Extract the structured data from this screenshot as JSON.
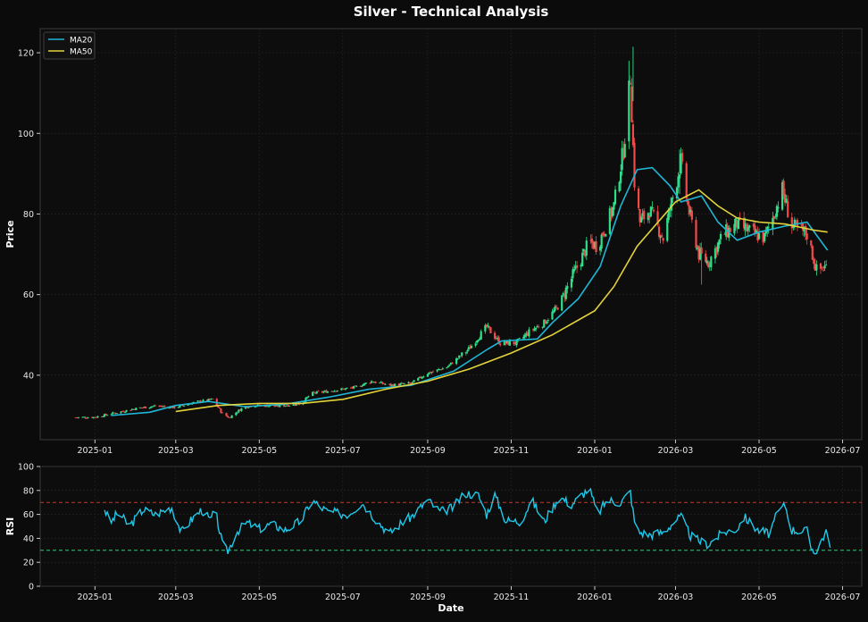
{
  "chart_data": [
    {
      "type": "candlestick",
      "title": "Silver - Technical Analysis",
      "ylabel": "Price",
      "ylim": [
        24,
        126
      ],
      "yticks": [
        40,
        60,
        80,
        100,
        120
      ],
      "xlim": [
        "2024-11-22",
        "2026-07-15"
      ],
      "xticks": [
        "2025-01",
        "2025-03",
        "2025-05",
        "2025-07",
        "2025-09",
        "2025-11",
        "2026-01",
        "2026-03",
        "2026-05",
        "2026-07"
      ],
      "grid": true,
      "legend_position": "top-left",
      "legend": [
        {
          "name": "MA20",
          "color": "#1fb6d6"
        },
        {
          "name": "MA50",
          "color": "#e3d43a"
        }
      ],
      "colors": {
        "up": "#2ee08a",
        "down": "#f04a4a",
        "ma20": "#1fb6d6",
        "ma50": "#e3d43a"
      },
      "approx_close_path": [
        [
          "2024-12-18",
          29.5
        ],
        [
          "2025-01-01",
          29.6
        ],
        [
          "2025-01-15",
          30.6
        ],
        [
          "2025-02-01",
          31.8
        ],
        [
          "2025-02-15",
          32.4
        ],
        [
          "2025-03-01",
          32.0
        ],
        [
          "2025-03-15",
          33.3
        ],
        [
          "2025-03-28",
          34.0
        ],
        [
          "2025-04-04",
          30.5
        ],
        [
          "2025-04-09",
          29.5
        ],
        [
          "2025-04-20",
          32.2
        ],
        [
          "2025-05-01",
          32.5
        ],
        [
          "2025-05-15",
          32.3
        ],
        [
          "2025-06-01",
          33.0
        ],
        [
          "2025-06-08",
          35.5
        ],
        [
          "2025-06-20",
          36.0
        ],
        [
          "2025-07-10",
          37.0
        ],
        [
          "2025-07-22",
          38.5
        ],
        [
          "2025-08-05",
          37.5
        ],
        [
          "2025-08-20",
          38.0
        ],
        [
          "2025-09-01",
          40.5
        ],
        [
          "2025-09-15",
          42.0
        ],
        [
          "2025-10-01",
          46.5
        ],
        [
          "2025-10-14",
          52.0
        ],
        [
          "2025-10-24",
          48.0
        ],
        [
          "2025-11-05",
          48.0
        ],
        [
          "2025-11-15",
          51.0
        ],
        [
          "2025-11-25",
          53.0
        ],
        [
          "2025-12-05",
          57.0
        ],
        [
          "2025-12-15",
          64.0
        ],
        [
          "2025-12-28",
          73.0
        ],
        [
          "2026-01-03",
          72.0
        ],
        [
          "2026-01-15",
          82.0
        ],
        [
          "2026-01-22",
          96.0
        ],
        [
          "2026-01-27",
          114.0
        ],
        [
          "2026-01-30",
          88.0
        ],
        [
          "2026-02-03",
          78.0
        ],
        [
          "2026-02-10",
          81.0
        ],
        [
          "2026-02-20",
          74.0
        ],
        [
          "2026-03-01",
          87.0
        ],
        [
          "2026-03-05",
          93.0
        ],
        [
          "2026-03-10",
          82.0
        ],
        [
          "2026-03-18",
          70.0
        ],
        [
          "2026-03-25",
          68.0
        ],
        [
          "2026-04-05",
          75.0
        ],
        [
          "2026-04-15",
          77.5
        ],
        [
          "2026-04-25",
          75.5
        ],
        [
          "2026-05-05",
          74.0
        ],
        [
          "2026-05-12",
          80.0
        ],
        [
          "2026-05-18",
          86.0
        ],
        [
          "2026-05-25",
          77.0
        ],
        [
          "2026-06-05",
          75.0
        ],
        [
          "2026-06-12",
          66.0
        ],
        [
          "2026-06-20",
          67.0
        ]
      ],
      "ma20": [
        [
          "2025-01-13",
          30.0
        ],
        [
          "2025-02-10",
          30.8
        ],
        [
          "2025-03-01",
          32.5
        ],
        [
          "2025-03-25",
          33.5
        ],
        [
          "2025-04-20",
          32.2
        ],
        [
          "2025-05-20",
          32.8
        ],
        [
          "2025-06-20",
          34.5
        ],
        [
          "2025-07-20",
          36.5
        ],
        [
          "2025-08-20",
          37.5
        ],
        [
          "2025-09-20",
          41.0
        ],
        [
          "2025-10-15",
          46.5
        ],
        [
          "2025-10-25",
          48.5
        ],
        [
          "2025-11-20",
          49.0
        ],
        [
          "2025-12-01",
          53.0
        ],
        [
          "2025-12-20",
          59.0
        ],
        [
          "2026-01-05",
          67.0
        ],
        [
          "2026-01-20",
          82.0
        ],
        [
          "2026-02-01",
          91.0
        ],
        [
          "2026-02-12",
          91.5
        ],
        [
          "2026-02-25",
          87.0
        ],
        [
          "2026-03-05",
          83.0
        ],
        [
          "2026-03-20",
          84.5
        ],
        [
          "2026-04-01",
          78.0
        ],
        [
          "2026-04-15",
          73.5
        ],
        [
          "2026-05-01",
          75.5
        ],
        [
          "2026-05-20",
          77.0
        ],
        [
          "2026-06-05",
          78.0
        ],
        [
          "2026-06-20",
          71.0
        ]
      ],
      "ma50": [
        [
          "2025-03-01",
          31.0
        ],
        [
          "2025-04-01",
          32.5
        ],
        [
          "2025-05-01",
          33.0
        ],
        [
          "2025-06-01",
          33.0
        ],
        [
          "2025-07-01",
          34.0
        ],
        [
          "2025-08-01",
          36.5
        ],
        [
          "2025-09-01",
          38.5
        ],
        [
          "2025-10-01",
          41.5
        ],
        [
          "2025-11-01",
          45.5
        ],
        [
          "2025-12-01",
          50.0
        ],
        [
          "2026-01-01",
          56.0
        ],
        [
          "2026-01-15",
          62.0
        ],
        [
          "2026-02-01",
          72.0
        ],
        [
          "2026-03-01",
          83.0
        ],
        [
          "2026-03-18",
          86.0
        ],
        [
          "2026-04-01",
          82.0
        ],
        [
          "2026-04-15",
          79.0
        ],
        [
          "2026-05-01",
          78.0
        ],
        [
          "2026-05-20",
          77.5
        ],
        [
          "2026-06-10",
          76.0
        ],
        [
          "2026-06-20",
          75.5
        ]
      ]
    },
    {
      "type": "line",
      "ylabel": "RSI",
      "xlabel": "Date",
      "ylim": [
        0,
        100
      ],
      "yticks": [
        0,
        20,
        40,
        60,
        80,
        100
      ],
      "reference_lines": [
        {
          "value": 70,
          "color": "#c0392b",
          "style": "dashed"
        },
        {
          "value": 30,
          "color": "#2ecc71",
          "style": "dashed"
        }
      ],
      "series_color": "#1fc8e8",
      "approx_points": [
        [
          "2025-01-08",
          65
        ],
        [
          "2025-01-12",
          52
        ],
        [
          "2025-01-18",
          62
        ],
        [
          "2025-01-26",
          50
        ],
        [
          "2025-02-05",
          64
        ],
        [
          "2025-02-14",
          60
        ],
        [
          "2025-02-26",
          66
        ],
        [
          "2025-03-05",
          45
        ],
        [
          "2025-03-12",
          55
        ],
        [
          "2025-03-20",
          64
        ],
        [
          "2025-03-26",
          55
        ],
        [
          "2025-03-30",
          63
        ],
        [
          "2025-04-04",
          35
        ],
        [
          "2025-04-08",
          28
        ],
        [
          "2025-04-14",
          45
        ],
        [
          "2025-04-22",
          53
        ],
        [
          "2025-05-01",
          48
        ],
        [
          "2025-05-10",
          52
        ],
        [
          "2025-05-20",
          47
        ],
        [
          "2025-06-01",
          55
        ],
        [
          "2025-06-08",
          72
        ],
        [
          "2025-06-20",
          62
        ],
        [
          "2025-07-05",
          60
        ],
        [
          "2025-07-15",
          70
        ],
        [
          "2025-07-25",
          56
        ],
        [
          "2025-08-04",
          44
        ],
        [
          "2025-08-12",
          52
        ],
        [
          "2025-08-20",
          58
        ],
        [
          "2025-09-01",
          72
        ],
        [
          "2025-09-10",
          62
        ],
        [
          "2025-09-20",
          66
        ],
        [
          "2025-09-28",
          78
        ],
        [
          "2025-10-08",
          76
        ],
        [
          "2025-10-14",
          60
        ],
        [
          "2025-10-20",
          76
        ],
        [
          "2025-10-28",
          55
        ],
        [
          "2025-11-08",
          54
        ],
        [
          "2025-11-16",
          72
        ],
        [
          "2025-11-25",
          54
        ],
        [
          "2025-12-06",
          75
        ],
        [
          "2025-12-15",
          68
        ],
        [
          "2025-12-28",
          82
        ],
        [
          "2026-01-03",
          60
        ],
        [
          "2026-01-10",
          72
        ],
        [
          "2026-01-20",
          70
        ],
        [
          "2026-01-27",
          79
        ],
        [
          "2026-01-31",
          46
        ],
        [
          "2026-02-10",
          43
        ],
        [
          "2026-02-20",
          45
        ],
        [
          "2026-03-01",
          55
        ],
        [
          "2026-03-05",
          58
        ],
        [
          "2026-03-12",
          42
        ],
        [
          "2026-03-18",
          38
        ],
        [
          "2026-03-25",
          35
        ],
        [
          "2026-04-05",
          45
        ],
        [
          "2026-04-15",
          48
        ],
        [
          "2026-04-20",
          58
        ],
        [
          "2026-04-30",
          47
        ],
        [
          "2026-05-08",
          44
        ],
        [
          "2026-05-15",
          62
        ],
        [
          "2026-05-20",
          68
        ],
        [
          "2026-05-25",
          47
        ],
        [
          "2026-06-05",
          46
        ],
        [
          "2026-06-08",
          32
        ],
        [
          "2026-06-12",
          28
        ],
        [
          "2026-06-16",
          40
        ],
        [
          "2026-06-20",
          46
        ],
        [
          "2026-06-22",
          36
        ]
      ]
    }
  ]
}
